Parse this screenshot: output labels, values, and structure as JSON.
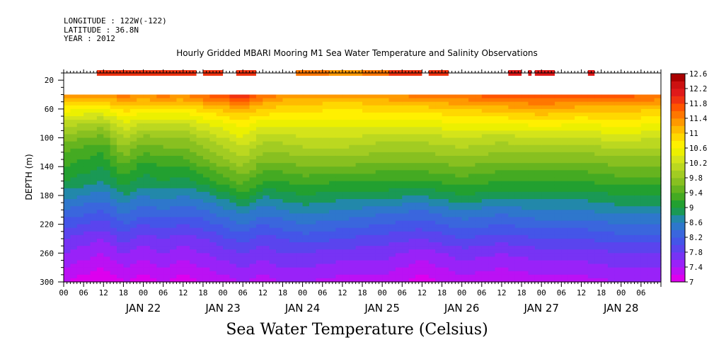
{
  "header": {
    "longitude": "LONGITUDE : 122W(-122)",
    "latitude": "LATITUDE : 36.8N",
    "year": "YEAR : 2012"
  },
  "chart_data": {
    "type": "heatmap",
    "title": "Hourly Gridded MBARI Mooring M1 Sea Water Temperature and Salinity Observations",
    "xlabel": "Sea Water Temperature (Celsius)",
    "ylabel": "DEPTH (m)",
    "ylim": [
      300,
      10
    ],
    "y_ticks": [
      20,
      60,
      100,
      140,
      180,
      220,
      260,
      300
    ],
    "xlim": [
      "2012-01-21T00:00",
      "2012-01-28T12:00"
    ],
    "x_hour_ticks": [
      "00",
      "06",
      "12",
      "18",
      "00",
      "06",
      "12",
      "18",
      "00",
      "06",
      "12",
      "18",
      "00",
      "06",
      "12",
      "18",
      "00",
      "06",
      "12",
      "18",
      "00",
      "06",
      "12",
      "18",
      "00",
      "06",
      "12",
      "18",
      "00",
      "06"
    ],
    "x_day_labels": [
      {
        "label": "JAN 22",
        "date": "2012-01-22"
      },
      {
        "label": "JAN 23",
        "date": "2012-01-23"
      },
      {
        "label": "JAN 24",
        "date": "2012-01-24"
      },
      {
        "label": "JAN 25",
        "date": "2012-01-25"
      },
      {
        "label": "JAN 26",
        "date": "2012-01-26"
      },
      {
        "label": "JAN 27",
        "date": "2012-01-27"
      },
      {
        "label": "JAN 28",
        "date": "2012-01-28"
      }
    ],
    "colorbar": {
      "levels": [
        7,
        7.2,
        7.4,
        7.6,
        7.8,
        8,
        8.2,
        8.4,
        8.6,
        8.8,
        9,
        9.2,
        9.4,
        9.6,
        9.8,
        10,
        10.2,
        10.4,
        10.6,
        10.8,
        11,
        11.2,
        11.4,
        11.6,
        11.8,
        12,
        12.2,
        12.4,
        12.6
      ],
      "labels": [
        "12.6",
        "12.2",
        "11.8",
        "11.4",
        "11",
        "10.6",
        "10.2",
        "9.8",
        "9.4",
        "9",
        "8.6",
        "8.2",
        "7.8",
        "7.4",
        "7"
      ],
      "colors": [
        "#dd00ee",
        "#bb11f4",
        "#9922f8",
        "#7733f4",
        "#5a44ee",
        "#4455e8",
        "#3a66dd",
        "#2e77cc",
        "#2288aa",
        "#1a9955",
        "#22a030",
        "#44aa22",
        "#66b41f",
        "#88c020",
        "#a2cc22",
        "#bbd820",
        "#d4e41a",
        "#ecf000",
        "#fff000",
        "#ffd800",
        "#ffbb00",
        "#ff9900",
        "#ff7700",
        "#ff5500",
        "#f03311",
        "#e01a1a",
        "#cc1111",
        "#aa0000"
      ]
    },
    "surface_depth": 10,
    "surface_segments": [
      {
        "start": "2012-01-21T10:00",
        "end": "2012-01-22T16:00",
        "temp": 11.9
      },
      {
        "start": "2012-01-22T18:00",
        "end": "2012-01-23T00:00",
        "temp": 11.9
      },
      {
        "start": "2012-01-23T04:00",
        "end": "2012-01-23T10:00",
        "temp": 11.9
      },
      {
        "start": "2012-01-23T22:00",
        "end": "2012-01-24T08:00",
        "temp": 11.4
      },
      {
        "start": "2012-01-24T08:00",
        "end": "2012-01-24T18:00",
        "temp": 11.2
      },
      {
        "start": "2012-01-24T18:00",
        "end": "2012-01-25T02:00",
        "temp": 11.5
      },
      {
        "start": "2012-01-25T02:00",
        "end": "2012-01-25T12:00",
        "temp": 11.9
      },
      {
        "start": "2012-01-25T14:00",
        "end": "2012-01-25T20:00",
        "temp": 11.9
      },
      {
        "start": "2012-01-26T14:00",
        "end": "2012-01-26T18:00",
        "temp": 12.1
      },
      {
        "start": "2012-01-26T20:00",
        "end": "2012-01-26T21:00",
        "temp": 12.1
      },
      {
        "start": "2012-01-26T22:00",
        "end": "2012-01-27T04:00",
        "temp": 12.0
      },
      {
        "start": "2012-01-27T14:00",
        "end": "2012-01-27T16:00",
        "temp": 12.0
      }
    ],
    "profile_depths": [
      40,
      50,
      60,
      80,
      100,
      120,
      140,
      160,
      180,
      200,
      220,
      240,
      260,
      280,
      300
    ],
    "profiles": [
      {
        "time": "2012-01-21T00:00",
        "temps": [
          11.3,
          11.0,
          10.7,
          10.1,
          9.7,
          9.4,
          9.2,
          9.0,
          8.7,
          8.4,
          8.1,
          7.8,
          7.6,
          7.4,
          7.2
        ]
      },
      {
        "time": "2012-01-21T12:00",
        "temps": [
          11.4,
          11.0,
          10.6,
          9.9,
          9.5,
          9.2,
          9.0,
          8.8,
          8.5,
          8.2,
          7.9,
          7.6,
          7.4,
          7.2,
          7.0
        ]
      },
      {
        "time": "2012-01-21T18:00",
        "temps": [
          11.5,
          11.2,
          10.9,
          10.4,
          10.0,
          9.7,
          9.4,
          9.1,
          8.8,
          8.5,
          8.2,
          7.9,
          7.6,
          7.4,
          7.2
        ]
      },
      {
        "time": "2012-01-22T00:00",
        "temps": [
          11.4,
          11.1,
          10.8,
          10.2,
          9.7,
          9.4,
          9.1,
          8.9,
          8.6,
          8.3,
          8.0,
          7.7,
          7.5,
          7.3,
          7.1
        ]
      },
      {
        "time": "2012-01-22T06:00",
        "temps": [
          11.5,
          11.2,
          10.8,
          10.2,
          9.8,
          9.5,
          9.2,
          9.0,
          8.7,
          8.4,
          8.1,
          7.8,
          7.6,
          7.4,
          7.2
        ]
      },
      {
        "time": "2012-01-22T12:00",
        "temps": [
          11.4,
          11.1,
          10.8,
          10.2,
          9.8,
          9.5,
          9.2,
          8.9,
          8.6,
          8.3,
          8.0,
          7.7,
          7.5,
          7.3,
          7.1
        ]
      },
      {
        "time": "2012-01-22T18:00",
        "temps": [
          11.6,
          11.3,
          10.9,
          10.4,
          10.0,
          9.7,
          9.4,
          9.1,
          8.7,
          8.4,
          8.1,
          7.8,
          7.6,
          7.4,
          7.2
        ]
      },
      {
        "time": "2012-01-23T06:00",
        "temps": [
          12.0,
          11.6,
          11.2,
          10.7,
          10.4,
          10.1,
          9.8,
          9.5,
          9.1,
          8.7,
          8.4,
          8.1,
          7.8,
          7.6,
          7.4
        ]
      },
      {
        "time": "2012-01-23T12:00",
        "temps": [
          11.6,
          11.3,
          11.0,
          10.5,
          10.1,
          9.8,
          9.5,
          9.2,
          8.8,
          8.5,
          8.2,
          7.9,
          7.7,
          7.5,
          7.3
        ]
      },
      {
        "time": "2012-01-23T18:00",
        "temps": [
          11.4,
          11.1,
          10.9,
          10.5,
          10.1,
          9.8,
          9.5,
          9.2,
          8.9,
          8.6,
          8.3,
          8.0,
          7.8,
          7.6,
          7.4
        ]
      },
      {
        "time": "2012-01-24T00:00",
        "temps": [
          11.4,
          11.1,
          10.9,
          10.5,
          10.2,
          9.9,
          9.6,
          9.3,
          9.0,
          8.7,
          8.4,
          8.1,
          7.8,
          7.6,
          7.4
        ]
      },
      {
        "time": "2012-01-24T12:00",
        "temps": [
          11.3,
          11.0,
          10.8,
          10.5,
          10.2,
          9.9,
          9.6,
          9.2,
          8.9,
          8.6,
          8.3,
          8.0,
          7.7,
          7.5,
          7.3
        ]
      },
      {
        "time": "2012-01-25T00:00",
        "temps": [
          11.4,
          11.1,
          10.9,
          10.5,
          10.1,
          9.8,
          9.5,
          9.2,
          8.9,
          8.5,
          8.2,
          7.9,
          7.7,
          7.5,
          7.3
        ]
      },
      {
        "time": "2012-01-25T12:00",
        "temps": [
          11.5,
          11.2,
          10.9,
          10.5,
          10.1,
          9.8,
          9.5,
          9.2,
          8.8,
          8.4,
          8.1,
          7.8,
          7.5,
          7.3,
          7.1
        ]
      },
      {
        "time": "2012-01-26T00:00",
        "temps": [
          11.6,
          11.3,
          11.0,
          10.6,
          10.2,
          9.9,
          9.6,
          9.3,
          9.0,
          8.6,
          8.3,
          8.0,
          7.7,
          7.5,
          7.3
        ]
      },
      {
        "time": "2012-01-26T12:00",
        "temps": [
          11.8,
          11.4,
          11.1,
          10.6,
          10.1,
          9.8,
          9.5,
          9.2,
          8.9,
          8.5,
          8.2,
          7.9,
          7.6,
          7.4,
          7.2
        ]
      },
      {
        "time": "2012-01-27T00:00",
        "temps": [
          11.9,
          11.5,
          11.2,
          10.7,
          10.2,
          9.8,
          9.5,
          9.2,
          8.9,
          8.6,
          8.3,
          8.0,
          7.7,
          7.5,
          7.3
        ]
      },
      {
        "time": "2012-01-27T12:00",
        "temps": [
          11.7,
          11.4,
          11.1,
          10.6,
          10.2,
          9.8,
          9.5,
          9.2,
          8.9,
          8.6,
          8.3,
          8.0,
          7.7,
          7.5,
          7.3
        ]
      },
      {
        "time": "2012-01-28T00:00",
        "temps": [
          11.7,
          11.4,
          11.1,
          10.7,
          10.3,
          9.9,
          9.6,
          9.3,
          9.0,
          8.7,
          8.4,
          8.1,
          7.8,
          7.6,
          7.4
        ]
      },
      {
        "time": "2012-01-28T12:00",
        "temps": [
          11.6,
          11.3,
          11.0,
          10.6,
          10.2,
          9.9,
          9.6,
          9.3,
          9.0,
          8.7,
          8.4,
          8.1,
          7.8,
          7.6,
          7.4
        ]
      }
    ]
  }
}
